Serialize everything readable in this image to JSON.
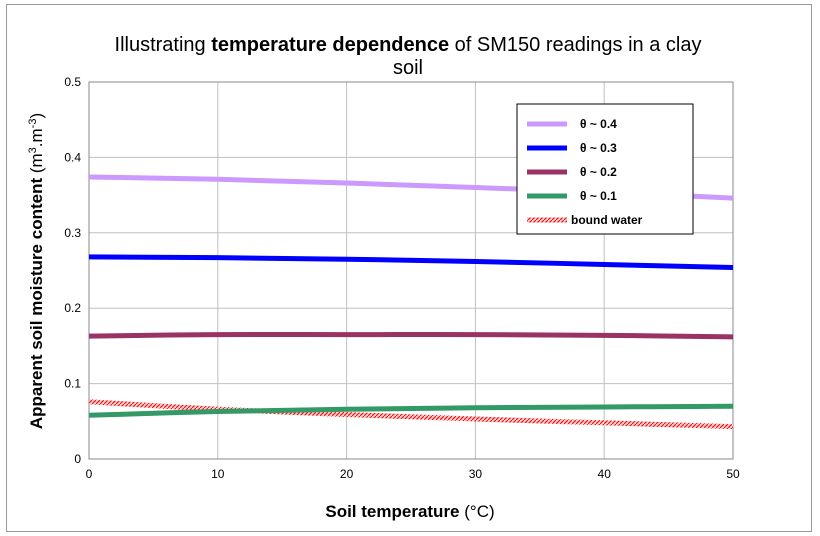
{
  "chart_data": {
    "type": "line",
    "title": {
      "prefix": "Illustrating ",
      "bold": "temperature dependence",
      "suffix": " of SM150 readings in a clay",
      "line2": "soil"
    },
    "xlabel": {
      "bold": "Soil temperature",
      "rest": " (°C)"
    },
    "ylabel": {
      "bold": "Apparent soil moisture content",
      "unit_prefix": " (m",
      "sup1": "3",
      "unit_mid": ".m",
      "sup2": "-3",
      "unit_suffix": ")"
    },
    "xlim": [
      0,
      50
    ],
    "ylim": [
      0,
      0.5
    ],
    "x_ticks": [
      "0",
      "10",
      "20",
      "30",
      "40",
      "50"
    ],
    "y_ticks": [
      "0",
      "0.1",
      "0.2",
      "0.3",
      "0.4",
      "0.5"
    ],
    "grid": true,
    "legend_position": "top-right",
    "x": [
      0,
      10,
      20,
      30,
      40,
      50
    ],
    "series": [
      {
        "name": "θ ~ 0.4",
        "color": "#cc99ff",
        "pattern": "solid",
        "values": [
          0.374,
          0.371,
          0.366,
          0.36,
          0.354,
          0.346
        ]
      },
      {
        "name": "θ ~ 0.3",
        "color": "#0000ff",
        "pattern": "solid",
        "values": [
          0.268,
          0.267,
          0.265,
          0.262,
          0.258,
          0.254
        ]
      },
      {
        "name": "θ ~ 0.2",
        "color": "#993366",
        "pattern": "solid",
        "values": [
          0.163,
          0.165,
          0.165,
          0.165,
          0.164,
          0.162
        ]
      },
      {
        "name": "θ ~ 0.1",
        "color": "#339966",
        "pattern": "solid",
        "values": [
          0.058,
          0.063,
          0.066,
          0.068,
          0.069,
          0.07
        ]
      },
      {
        "name": "bound water",
        "color": "#ff6666",
        "pattern": "hatched",
        "values": [
          0.076,
          0.066,
          0.059,
          0.053,
          0.048,
          0.043
        ]
      }
    ]
  }
}
